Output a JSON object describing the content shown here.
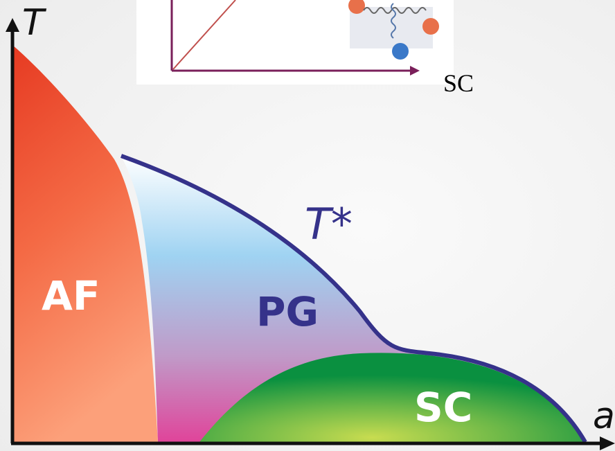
{
  "axes": {
    "y_label": "T",
    "x_label": "a"
  },
  "curve_label": "T*",
  "regions": {
    "af": "AF",
    "pg": "PG",
    "sc": "SC"
  },
  "inset": {
    "label": "SC"
  }
}
